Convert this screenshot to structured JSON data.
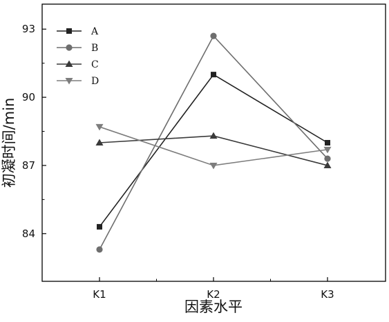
{
  "chart_data": {
    "type": "line",
    "xlabel": "因素水平",
    "ylabel": "初凝时间/min",
    "categories": [
      "K1",
      "K2",
      "K3"
    ],
    "ylim": [
      81.9,
      94.1
    ],
    "yticks": [
      84,
      87,
      90,
      93
    ],
    "legend_position": "top-left",
    "grid": false,
    "series": [
      {
        "name": "A",
        "marker": "square",
        "color": "#222222",
        "values": [
          84.3,
          91.0,
          88.0
        ]
      },
      {
        "name": "B",
        "marker": "circle",
        "color": "#6e6e6e",
        "values": [
          83.3,
          92.7,
          87.3
        ]
      },
      {
        "name": "C",
        "marker": "triangle-up",
        "color": "#3a3a3a",
        "values": [
          88.0,
          88.3,
          87.0
        ]
      },
      {
        "name": "D",
        "marker": "triangle-down",
        "color": "#7d7d7d",
        "values": [
          88.7,
          87.0,
          87.7
        ]
      }
    ]
  }
}
